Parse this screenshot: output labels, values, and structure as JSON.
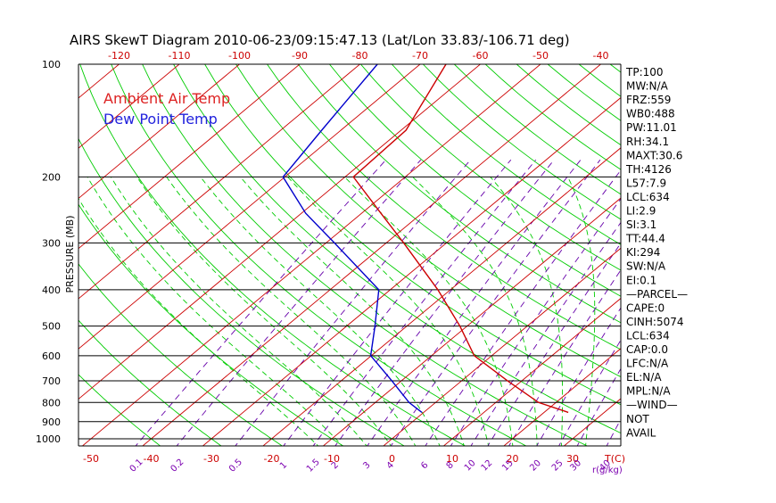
{
  "chart_data": {
    "type": "line",
    "title": "AIRS SkewT Diagram 2010-06-23/09:15:47.13 (Lat/Lon 33.83/-106.71 deg)",
    "ylabel": "PRESSURE (MB)",
    "xlabel_right": "T(C)",
    "mixing_unit": "r(g/kg)",
    "pressure_ticks": [
      100,
      200,
      300,
      400,
      500,
      600,
      700,
      800,
      900,
      1000
    ],
    "bottom_temp_ticks": [
      -50,
      -40,
      -30,
      -20,
      -10,
      0,
      10,
      20,
      30
    ],
    "top_temp_ticks": [
      -120,
      -110,
      -100,
      -90,
      -80,
      -70,
      -60,
      -50,
      -40
    ],
    "mixing_ratio_labels": [
      "0.1",
      "0.2",
      "0.5",
      "1",
      "1.5",
      "2",
      "3",
      "4",
      "6",
      "8",
      "10",
      "12",
      "15",
      "20",
      "25",
      "30",
      "40"
    ],
    "legend": [
      {
        "name": "Ambient Air Temp",
        "color": "#dd2222"
      },
      {
        "name": "Dew Point Temp",
        "color": "#2222dd"
      }
    ],
    "series": [
      {
        "name": "Ambient Air Temp",
        "color": "#cc0000",
        "points": [
          {
            "p": 100,
            "t": -65.7
          },
          {
            "p": 150,
            "t": -59.2
          },
          {
            "p": 200,
            "t": -58.6
          },
          {
            "p": 250,
            "t": -46.8
          },
          {
            "p": 300,
            "t": -37.1
          },
          {
            "p": 400,
            "t": -22.1
          },
          {
            "p": 500,
            "t": -11.2
          },
          {
            "p": 600,
            "t": -2.9
          },
          {
            "p": 700,
            "t": 7.6
          },
          {
            "p": 800,
            "t": 17.1
          },
          {
            "p": 850,
            "t": 24.0
          }
        ]
      },
      {
        "name": "Dew Point Temp",
        "color": "#0000cc",
        "points": [
          {
            "p": 100,
            "t": -77.1
          },
          {
            "p": 150,
            "t": -73.2
          },
          {
            "p": 200,
            "t": -70.3
          },
          {
            "p": 250,
            "t": -59.3
          },
          {
            "p": 300,
            "t": -48.6
          },
          {
            "p": 400,
            "t": -31.9
          },
          {
            "p": 500,
            "t": -25.3
          },
          {
            "p": 600,
            "t": -20.1
          },
          {
            "p": 700,
            "t": -11.6
          },
          {
            "p": 800,
            "t": -4.4
          },
          {
            "p": 850,
            "t": -0.3
          }
        ]
      }
    ]
  },
  "stats": [
    "TP:100",
    "MW:N/A",
    "FRZ:559",
    "WB0:488",
    "PW:11.01",
    "RH:34.1",
    "MAXT:30.6",
    "TH:4126",
    "L57:7.9",
    "LCL:634",
    "LI:2.9",
    "SI:3.1",
    "TT:44.4",
    "KI:294",
    "SW:N/A",
    "EI:0.1",
    "—PARCEL—",
    "CAPE:0",
    "CINH:5074",
    "LCL:634",
    "CAP:0.0",
    "LFC:N/A",
    "EL:N/A",
    "MPL:N/A",
    "—WIND—",
    "NOT",
    "AVAIL"
  ],
  "colors": {
    "isotherm": "#cc0000",
    "dry_adiabat": "#00cc00",
    "moist_adiabat": "#00cc00",
    "mixing_ratio": "#6600aa",
    "isobar": "#000000",
    "frame": "#000000"
  }
}
